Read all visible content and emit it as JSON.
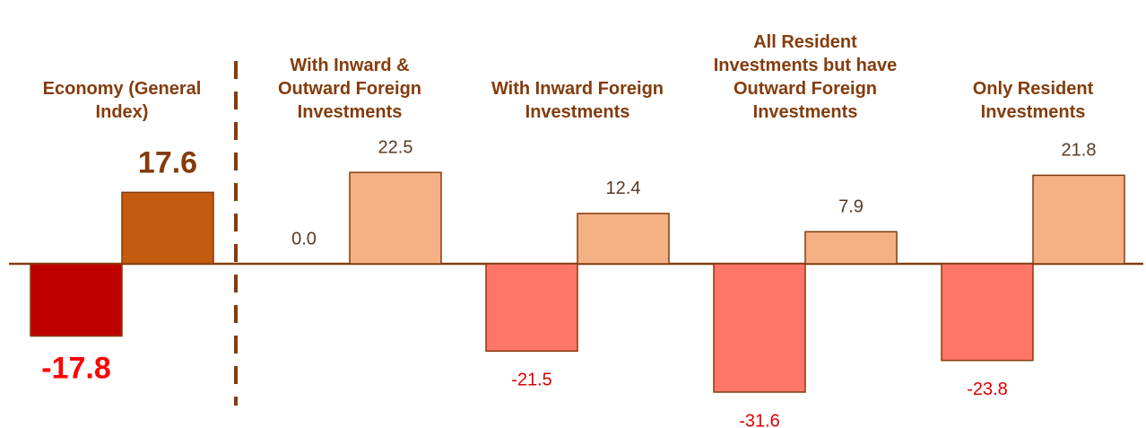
{
  "chart_data": {
    "type": "bar",
    "categories": [
      [
        "Economy (General",
        "Index)"
      ],
      [
        "With Inward &",
        "Outward Foreign",
        "Investments"
      ],
      [
        "With Inward Foreign",
        "Investments"
      ],
      [
        "All Resident",
        "Investments but have",
        "Outward Foreign",
        "Investments"
      ],
      [
        "Only Resident",
        "Investments"
      ]
    ],
    "series": [
      {
        "colors": [
          "#c00000",
          "#ff7669",
          "#ff7669",
          "#ff7669",
          "#ff7669"
        ],
        "values": [
          -17.8,
          0,
          -21.5,
          -31.6,
          -23.8
        ],
        "value_labels": [
          "-17.8",
          "0.0",
          "-21.5",
          "-31.6",
          "-23.8"
        ]
      },
      {
        "colors": [
          "#c55a11",
          "#f4b183",
          "#f4b183",
          "#f4b183",
          "#f4b183"
        ],
        "values": [
          17.6,
          22.5,
          12.4,
          7.9,
          21.8
        ],
        "value_labels": [
          "17.6",
          "22.5",
          "12.4",
          "7.9",
          "21.8"
        ]
      }
    ],
    "ylim": [
      -40,
      40
    ]
  }
}
